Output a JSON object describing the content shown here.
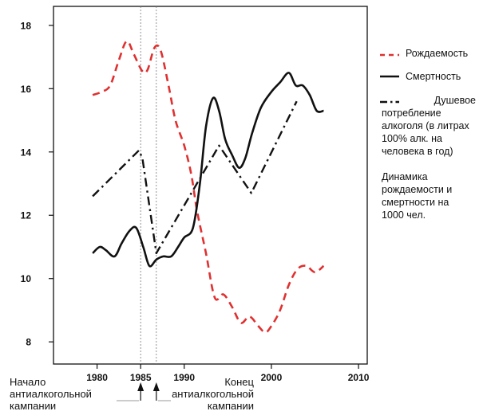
{
  "chart_data": {
    "type": "line",
    "title": "",
    "xlabel": "",
    "ylabel": "",
    "xlim": [
      1975,
      2011
    ],
    "ylim": [
      7.3,
      18.6
    ],
    "x_ticks": [
      1980,
      1985,
      1990,
      2000,
      2010
    ],
    "x_tick_labels": [
      "1980",
      "1985",
      "1990",
      "2000",
      "2010"
    ],
    "y_ticks": [
      8,
      10,
      12,
      14,
      16,
      18
    ],
    "y_tick_labels": [
      "8",
      "10",
      "12",
      "14",
      "16",
      "18"
    ],
    "grid": false,
    "legend_position": "right",
    "series": [
      {
        "name": "Рождаемость",
        "style": "dashed",
        "color": "#e03030",
        "x": [
          1979.5,
          1980.5,
          1981.5,
          1982.5,
          1983.4,
          1984.2,
          1985.2,
          1985.8,
          1986.6,
          1987.3,
          1988.2,
          1989.0,
          1990.0,
          1990.8,
          1991.5,
          1992.5,
          1993.5,
          1994.5,
          1995.5,
          1996.5,
          1997.5,
          1998.5,
          1999.3,
          2000.0,
          2001.0,
          2002.0,
          2003.0,
          2004.0,
          2005.0,
          2006.0
        ],
        "values": [
          15.8,
          15.9,
          16.1,
          16.9,
          17.5,
          17.1,
          16.55,
          16.6,
          17.3,
          17.2,
          16.1,
          15.0,
          14.2,
          13.3,
          12.1,
          10.8,
          9.4,
          9.5,
          9.1,
          8.6,
          8.8,
          8.5,
          8.3,
          8.5,
          9.0,
          9.8,
          10.3,
          10.4,
          10.2,
          10.4
        ]
      },
      {
        "name": "Смертность",
        "style": "solid",
        "color": "#111111",
        "x": [
          1979.5,
          1980.3,
          1981.0,
          1982.0,
          1982.8,
          1983.7,
          1984.5,
          1985.3,
          1986.0,
          1986.8,
          1987.6,
          1988.5,
          1989.3,
          1990.0,
          1991.0,
          1991.8,
          1992.5,
          1993.3,
          1994.0,
          1994.7,
          1995.5,
          1996.3,
          1997.0,
          1997.8,
          1998.8,
          2000.0,
          2001.0,
          2002.0,
          2002.8,
          2003.6,
          2004.4,
          2005.2,
          2006.0
        ],
        "values": [
          10.8,
          11.0,
          10.9,
          10.7,
          11.1,
          11.5,
          11.6,
          11.0,
          10.4,
          10.6,
          10.7,
          10.7,
          11.0,
          11.3,
          11.6,
          13.0,
          14.8,
          15.7,
          15.3,
          14.4,
          13.9,
          13.5,
          13.8,
          14.6,
          15.4,
          15.9,
          16.2,
          16.5,
          16.1,
          16.1,
          15.8,
          15.3,
          15.3
        ]
      },
      {
        "name": "Душевое потребление алкоголя (в литрах 100% алк. на человека в год)",
        "style": "dash-dot",
        "color": "#111111",
        "x": [
          1979.5,
          1984.8,
          1985.2,
          1986.8,
          1994.0,
          1997.7,
          2002.9
        ],
        "values": [
          12.6,
          14.05,
          13.8,
          10.8,
          14.2,
          12.7,
          15.6
        ]
      }
    ],
    "markers": [
      {
        "x": 1985.0,
        "style": "thin-dashed-vertical",
        "label": "Начало антиалкогольной кампании"
      },
      {
        "x": 1986.8,
        "style": "thin-dashed-vertical",
        "label": "Конец антиалкогольной кампании"
      }
    ],
    "annotations": {
      "description": "Динамика рождаемости и смертности на 1000 чел.",
      "start_label": "Начало антиалкогольной кампании",
      "end_label": "Конец антиалкогольной кампании"
    }
  }
}
